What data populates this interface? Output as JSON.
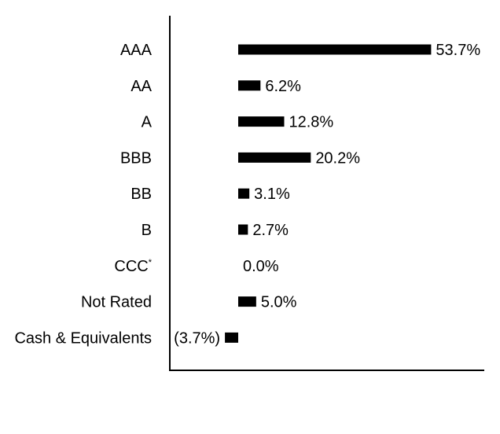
{
  "chart_data": {
    "type": "bar",
    "orientation": "horizontal",
    "categories": [
      "AAA",
      "AA",
      "A",
      "BBB",
      "BB",
      "B",
      "CCC",
      "Not Rated",
      "Cash & Equivalents"
    ],
    "category_footnote_marks": [
      "",
      "",
      "",
      "",
      "",
      "",
      "*",
      "",
      ""
    ],
    "values": [
      53.7,
      6.2,
      12.8,
      20.2,
      3.1,
      2.7,
      0.0,
      5.0,
      -3.7
    ],
    "value_labels": [
      "53.7%",
      "6.2%",
      "12.8%",
      "20.2%",
      "3.1%",
      "2.7%",
      "0.0%",
      "5.0%",
      "(3.7%)"
    ],
    "title": "",
    "xlabel": "",
    "ylabel": "",
    "grid": false,
    "legend": "none",
    "bar_color": "#000000"
  }
}
